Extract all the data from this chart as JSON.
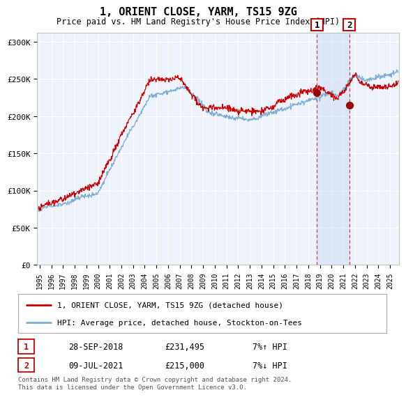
{
  "title": "1, ORIENT CLOSE, YARM, TS15 9ZG",
  "subtitle": "Price paid vs. HM Land Registry's House Price Index (HPI)",
  "ylabel_ticks": [
    "£0",
    "£50K",
    "£100K",
    "£150K",
    "£200K",
    "£250K",
    "£300K"
  ],
  "ytick_values": [
    0,
    50000,
    100000,
    150000,
    200000,
    250000,
    300000
  ],
  "ylim": [
    0,
    312000
  ],
  "xlim_start": 1994.8,
  "xlim_end": 2025.8,
  "sale1": {
    "date_num": 2018.74,
    "price": 231495,
    "label": "1",
    "hpi_pct": "7%↑ HPI",
    "date_str": "28-SEP-2018"
  },
  "sale2": {
    "date_num": 2021.52,
    "price": 215000,
    "label": "2",
    "hpi_pct": "7%↓ HPI",
    "date_str": "09-JUL-2021"
  },
  "line1_color": "#cc0000",
  "line2_color": "#7dadd4",
  "dot_color": "#990000",
  "background_color": "#eef2fb",
  "shade_color": "#c8d8f0",
  "legend1_label": "1, ORIENT CLOSE, YARM, TS15 9ZG (detached house)",
  "legend2_label": "HPI: Average price, detached house, Stockton-on-Tees",
  "footer": "Contains HM Land Registry data © Crown copyright and database right 2024.\nThis data is licensed under the Open Government Licence v3.0.",
  "xtick_years": [
    1995,
    1996,
    1997,
    1998,
    1999,
    2000,
    2001,
    2002,
    2003,
    2004,
    2005,
    2006,
    2007,
    2008,
    2009,
    2010,
    2011,
    2012,
    2013,
    2014,
    2015,
    2016,
    2017,
    2018,
    2019,
    2020,
    2021,
    2022,
    2023,
    2024,
    2025
  ]
}
